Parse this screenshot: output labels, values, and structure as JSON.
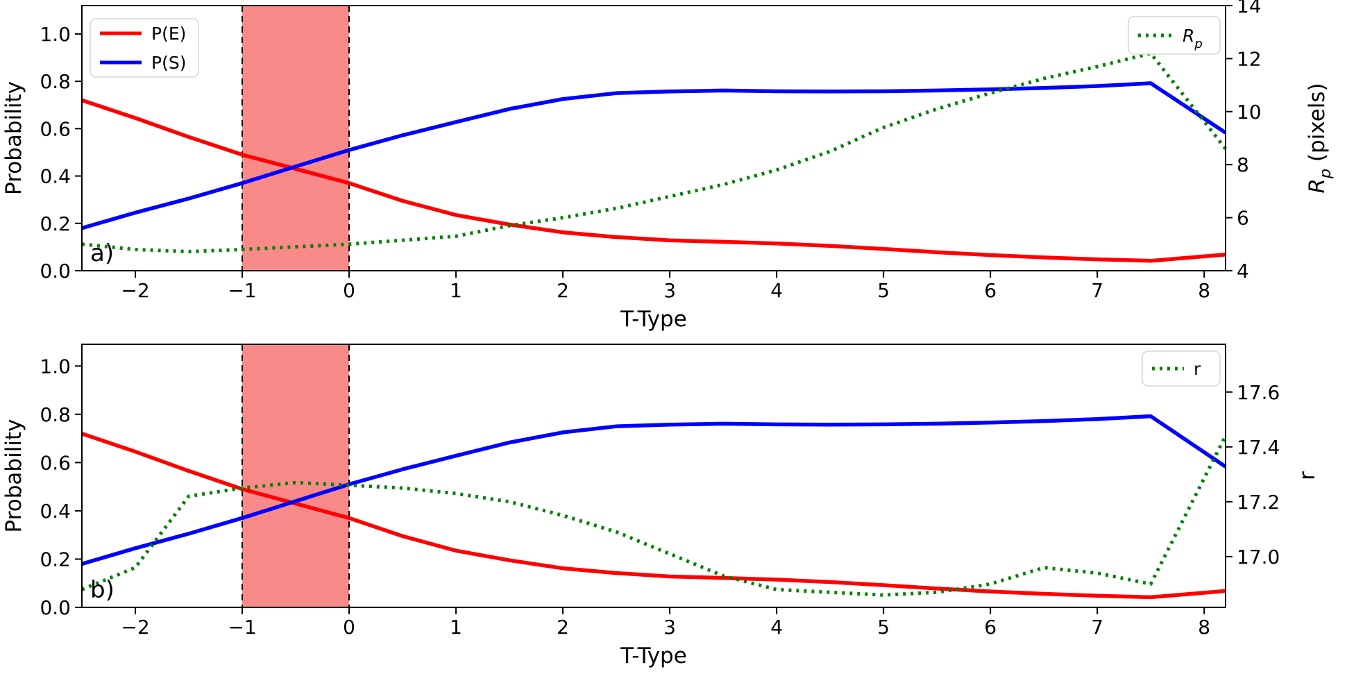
{
  "figure": {
    "background": "#ffffff",
    "accent_colors": {
      "pe_red": "#ff0000",
      "ps_blue": "#0000ff",
      "green_dotted": "#008000",
      "band_fill": "#f98a8a",
      "band_edge": "#000000",
      "legend_border": "#d5d5d5"
    }
  },
  "chart_data": [
    {
      "id": "panel-a",
      "type": "line",
      "panel_label": "a)",
      "xlabel": "T-Type",
      "ylabel_left": "Probability",
      "ylabel_right_parts": [
        {
          "t": "R",
          "italic": true
        },
        {
          "t": "p",
          "sub": true,
          "italic": true
        },
        {
          "t": " (pixels)"
        }
      ],
      "xlim": [
        -2.5,
        8.2
      ],
      "ylim_left": [
        0,
        1.12
      ],
      "ylim_right": [
        4,
        14
      ],
      "grid": false,
      "xticks": [
        {
          "v": -2,
          "label": "−2"
        },
        {
          "v": -1,
          "label": "−1"
        },
        {
          "v": 0,
          "label": "0"
        },
        {
          "v": 1,
          "label": "1"
        },
        {
          "v": 2,
          "label": "2"
        },
        {
          "v": 3,
          "label": "3"
        },
        {
          "v": 4,
          "label": "4"
        },
        {
          "v": 5,
          "label": "5"
        },
        {
          "v": 6,
          "label": "6"
        },
        {
          "v": 7,
          "label": "7"
        },
        {
          "v": 8,
          "label": "8"
        }
      ],
      "yticks_left": [
        {
          "v": 0.0,
          "label": "0.0"
        },
        {
          "v": 0.2,
          "label": "0.2"
        },
        {
          "v": 0.4,
          "label": "0.4"
        },
        {
          "v": 0.6,
          "label": "0.6"
        },
        {
          "v": 0.8,
          "label": "0.8"
        },
        {
          "v": 1.0,
          "label": "1.0"
        }
      ],
      "yticks_right": [
        {
          "v": 4,
          "label": "4"
        },
        {
          "v": 6,
          "label": "6"
        },
        {
          "v": 8,
          "label": "8"
        },
        {
          "v": 10,
          "label": "10"
        },
        {
          "v": 12,
          "label": "12"
        },
        {
          "v": 14,
          "label": "14"
        }
      ],
      "shaded_region": {
        "x0": -1,
        "x1": 0,
        "fill": "#f98a8a",
        "edge_color": "#000000",
        "edge_style": "dashed"
      },
      "x": [
        -2.5,
        -2,
        -1.5,
        -1,
        -0.5,
        0,
        0.5,
        1,
        1.5,
        2,
        2.5,
        3,
        3.5,
        4,
        4.5,
        5,
        5.5,
        6,
        6.5,
        7,
        7.5,
        8.2
      ],
      "series": [
        {
          "name": "P(E)",
          "axis": "left",
          "color": "#ff0000",
          "style": "solid",
          "values": [
            0.72,
            0.645,
            0.565,
            0.49,
            0.43,
            0.37,
            0.295,
            0.235,
            0.195,
            0.162,
            0.142,
            0.128,
            0.122,
            0.115,
            0.105,
            0.092,
            0.078,
            0.066,
            0.056,
            0.048,
            0.042,
            0.068
          ]
        },
        {
          "name": "P(S)",
          "axis": "left",
          "color": "#0000ff",
          "style": "solid",
          "values": [
            0.18,
            0.245,
            0.305,
            0.37,
            0.44,
            0.51,
            0.572,
            0.628,
            0.683,
            0.725,
            0.75,
            0.757,
            0.761,
            0.758,
            0.757,
            0.758,
            0.761,
            0.766,
            0.772,
            0.78,
            0.792,
            0.583
          ]
        },
        {
          "name": "Rp",
          "axis": "right",
          "color": "#008000",
          "style": "dotted",
          "label_parts": [
            {
              "t": "R",
              "italic": true
            },
            {
              "t": "p",
              "sub": true,
              "italic": true
            }
          ],
          "values": [
            5.0,
            4.8,
            4.72,
            4.8,
            4.9,
            5.0,
            5.15,
            5.3,
            5.7,
            6.0,
            6.35,
            6.8,
            7.25,
            7.8,
            8.5,
            9.4,
            10.1,
            10.7,
            11.25,
            11.7,
            12.2,
            8.6
          ]
        }
      ],
      "legends": [
        {
          "position": "upper-left",
          "items": [
            "P(E)",
            "P(S)"
          ]
        },
        {
          "position": "upper-right",
          "items": [
            "Rp"
          ]
        }
      ]
    },
    {
      "id": "panel-b",
      "type": "line",
      "panel_label": "b)",
      "xlabel": "T-Type",
      "ylabel_left": "Probability",
      "ylabel_right_parts": [
        {
          "t": "r"
        }
      ],
      "xlim": [
        -2.5,
        8.2
      ],
      "ylim_left": [
        0,
        1.09
      ],
      "ylim_right": [
        16.815,
        17.774
      ],
      "grid": false,
      "xticks": [
        {
          "v": -2,
          "label": "−2"
        },
        {
          "v": -1,
          "label": "−1"
        },
        {
          "v": 0,
          "label": "0"
        },
        {
          "v": 1,
          "label": "1"
        },
        {
          "v": 2,
          "label": "2"
        },
        {
          "v": 3,
          "label": "3"
        },
        {
          "v": 4,
          "label": "4"
        },
        {
          "v": 5,
          "label": "5"
        },
        {
          "v": 6,
          "label": "6"
        },
        {
          "v": 7,
          "label": "7"
        },
        {
          "v": 8,
          "label": "8"
        }
      ],
      "yticks_left": [
        {
          "v": 0.0,
          "label": "0.0"
        },
        {
          "v": 0.2,
          "label": "0.2"
        },
        {
          "v": 0.4,
          "label": "0.4"
        },
        {
          "v": 0.6,
          "label": "0.6"
        },
        {
          "v": 0.8,
          "label": "0.8"
        },
        {
          "v": 1.0,
          "label": "1.0"
        }
      ],
      "yticks_right": [
        {
          "v": 17.0,
          "label": "17.0"
        },
        {
          "v": 17.2,
          "label": "17.2"
        },
        {
          "v": 17.4,
          "label": "17.4"
        },
        {
          "v": 17.6,
          "label": "17.6"
        }
      ],
      "shaded_region": {
        "x0": -1,
        "x1": 0,
        "fill": "#f98a8a",
        "edge_color": "#000000",
        "edge_style": "dashed"
      },
      "x": [
        -2.5,
        -2,
        -1.5,
        -1,
        -0.5,
        0,
        0.5,
        1,
        1.5,
        2,
        2.5,
        3,
        3.5,
        4,
        4.5,
        5,
        5.5,
        6,
        6.5,
        7,
        7.5,
        8.2
      ],
      "series": [
        {
          "name": "P(E)",
          "axis": "left",
          "color": "#ff0000",
          "style": "solid",
          "values": [
            0.72,
            0.645,
            0.565,
            0.49,
            0.43,
            0.37,
            0.295,
            0.235,
            0.195,
            0.162,
            0.142,
            0.128,
            0.122,
            0.115,
            0.105,
            0.092,
            0.078,
            0.066,
            0.056,
            0.048,
            0.042,
            0.068
          ]
        },
        {
          "name": "P(S)",
          "axis": "left",
          "color": "#0000ff",
          "style": "solid",
          "values": [
            0.18,
            0.245,
            0.305,
            0.37,
            0.44,
            0.51,
            0.572,
            0.628,
            0.683,
            0.725,
            0.75,
            0.757,
            0.761,
            0.758,
            0.757,
            0.758,
            0.761,
            0.766,
            0.772,
            0.78,
            0.792,
            0.583
          ]
        },
        {
          "name": "r",
          "axis": "right",
          "color": "#008000",
          "style": "dotted",
          "label_parts": [
            {
              "t": "r"
            }
          ],
          "values": [
            16.88,
            16.96,
            17.22,
            17.25,
            17.27,
            17.26,
            17.25,
            17.23,
            17.2,
            17.15,
            17.09,
            17.01,
            16.93,
            16.88,
            16.87,
            16.86,
            16.87,
            16.9,
            16.96,
            16.94,
            16.9,
            17.44
          ]
        }
      ],
      "legends": [
        {
          "position": "upper-right",
          "items": [
            "r"
          ]
        }
      ]
    }
  ]
}
